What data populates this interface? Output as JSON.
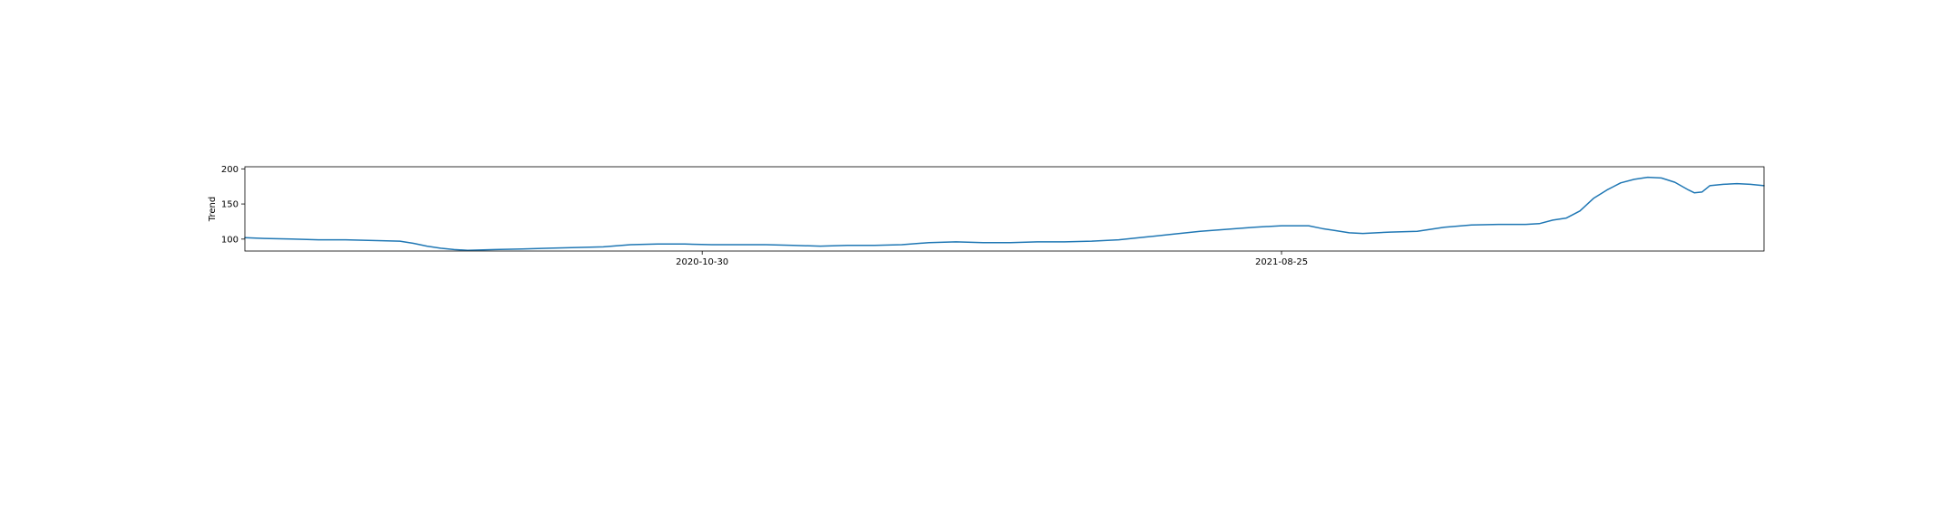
{
  "chart_data": {
    "type": "line",
    "title": "",
    "xlabel": "",
    "ylabel": "Trend",
    "x_range": [
      "2020-03-08",
      "2022-05-01"
    ],
    "ylim": [
      83,
      203
    ],
    "grid": false,
    "legend": "none",
    "line_color": "#1f77b4",
    "x_ticks": [
      {
        "date": "2020-10-30",
        "label": "2020-10-30"
      },
      {
        "date": "2021-08-25",
        "label": "2021-08-25"
      }
    ],
    "y_ticks": [
      {
        "value": 100,
        "label": "100"
      },
      {
        "value": 150,
        "label": "150"
      },
      {
        "value": 200,
        "label": "200"
      }
    ],
    "series": [
      {
        "points": [
          [
            "2020-03-08",
            102
          ],
          [
            "2020-03-18",
            101
          ],
          [
            "2020-04-01",
            100
          ],
          [
            "2020-04-15",
            99
          ],
          [
            "2020-04-29",
            99
          ],
          [
            "2020-05-13",
            98
          ],
          [
            "2020-05-27",
            97
          ],
          [
            "2020-06-03",
            94
          ],
          [
            "2020-06-10",
            90
          ],
          [
            "2020-06-17",
            87
          ],
          [
            "2020-06-24",
            85
          ],
          [
            "2020-07-01",
            84
          ],
          [
            "2020-07-15",
            85
          ],
          [
            "2020-07-29",
            86
          ],
          [
            "2020-08-12",
            87
          ],
          [
            "2020-08-26",
            88
          ],
          [
            "2020-09-09",
            89
          ],
          [
            "2020-09-23",
            92
          ],
          [
            "2020-10-07",
            93
          ],
          [
            "2020-10-21",
            93
          ],
          [
            "2020-11-04",
            92
          ],
          [
            "2020-11-18",
            92
          ],
          [
            "2020-12-02",
            92
          ],
          [
            "2020-12-16",
            91
          ],
          [
            "2020-12-30",
            90
          ],
          [
            "2021-01-13",
            91
          ],
          [
            "2021-01-27",
            91
          ],
          [
            "2021-02-10",
            92
          ],
          [
            "2021-02-24",
            95
          ],
          [
            "2021-03-10",
            96
          ],
          [
            "2021-03-24",
            95
          ],
          [
            "2021-04-07",
            95
          ],
          [
            "2021-04-21",
            96
          ],
          [
            "2021-05-05",
            96
          ],
          [
            "2021-05-19",
            97
          ],
          [
            "2021-06-02",
            99
          ],
          [
            "2021-06-16",
            103
          ],
          [
            "2021-06-30",
            107
          ],
          [
            "2021-07-14",
            111
          ],
          [
            "2021-07-28",
            114
          ],
          [
            "2021-08-11",
            117
          ],
          [
            "2021-08-25",
            119
          ],
          [
            "2021-09-08",
            119
          ],
          [
            "2021-09-15",
            115
          ],
          [
            "2021-09-22",
            112
          ],
          [
            "2021-09-29",
            109
          ],
          [
            "2021-10-06",
            108
          ],
          [
            "2021-10-20",
            110
          ],
          [
            "2021-11-03",
            111
          ],
          [
            "2021-11-17",
            117
          ],
          [
            "2021-12-01",
            120
          ],
          [
            "2021-12-15",
            121
          ],
          [
            "2021-12-29",
            121
          ],
          [
            "2022-01-05",
            122
          ],
          [
            "2022-01-12",
            127
          ],
          [
            "2022-01-19",
            130
          ],
          [
            "2022-01-26",
            140
          ],
          [
            "2022-02-02",
            158
          ],
          [
            "2022-02-09",
            170
          ],
          [
            "2022-02-16",
            180
          ],
          [
            "2022-02-23",
            185
          ],
          [
            "2022-03-02",
            188
          ],
          [
            "2022-03-09",
            187
          ],
          [
            "2022-03-16",
            181
          ],
          [
            "2022-03-23",
            170
          ],
          [
            "2022-03-26",
            166
          ],
          [
            "2022-03-30",
            167
          ],
          [
            "2022-04-03",
            176
          ],
          [
            "2022-04-10",
            178
          ],
          [
            "2022-04-17",
            179
          ],
          [
            "2022-04-24",
            178
          ],
          [
            "2022-05-01",
            176
          ]
        ]
      }
    ]
  }
}
